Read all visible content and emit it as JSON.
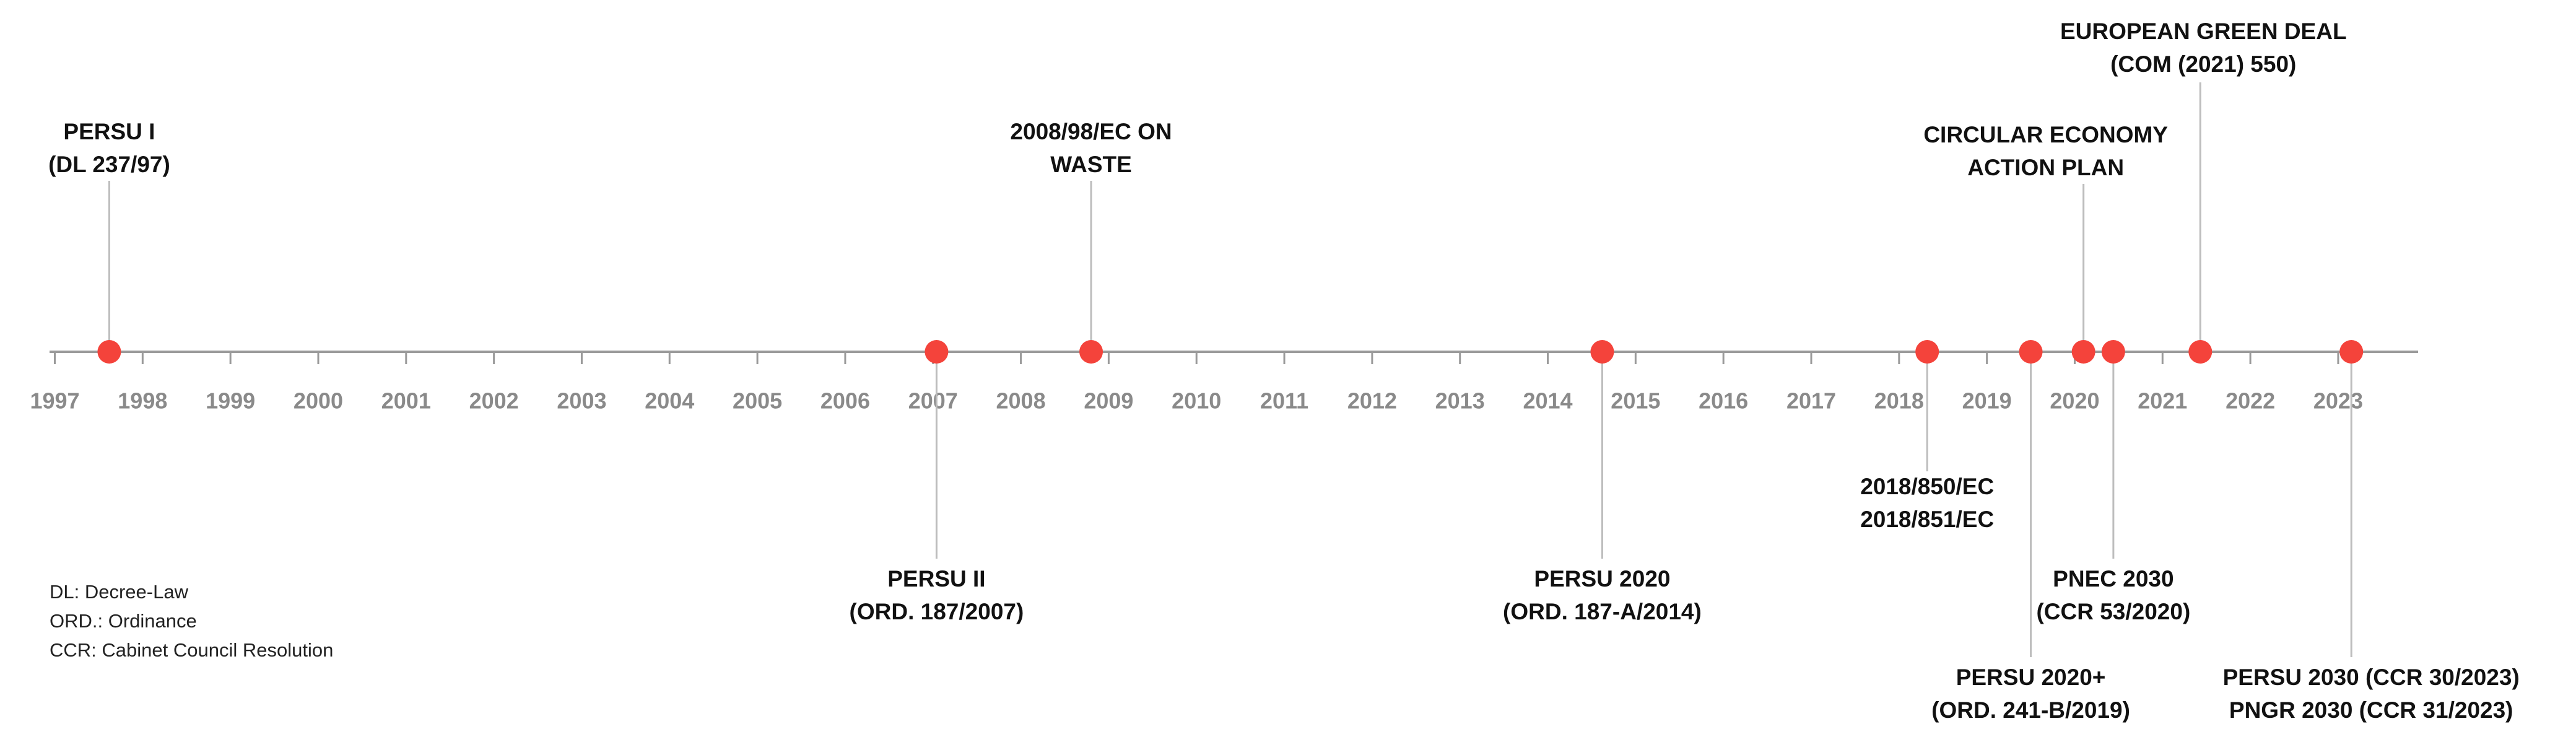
{
  "chart_data": {
    "type": "timeline",
    "xlim": [
      1996.94,
      2023.91
    ],
    "xticks": [
      1997,
      1998,
      1999,
      2000,
      2001,
      2002,
      2003,
      2004,
      2005,
      2006,
      2007,
      2008,
      2009,
      2010,
      2011,
      2012,
      2013,
      2014,
      2015,
      2016,
      2017,
      2018,
      2019,
      2020,
      2021,
      2022,
      2023
    ],
    "color": "#f4433b",
    "events": [
      {
        "x": 1997.62,
        "label": [
          "PERSU I",
          "(DL 237/97)"
        ]
      },
      {
        "x": 2007.04,
        "label": [
          "PERSU II",
          "(ORD. 187/2007)"
        ]
      },
      {
        "x": 2008.8,
        "label": [
          "2008/98/EC ON",
          "WASTE"
        ]
      },
      {
        "x": 2014.62,
        "label": [
          "PERSU 2020",
          "(ORD. 187-A/2014)"
        ]
      },
      {
        "x": 2018.32,
        "label": [
          "2018/850/EC",
          "2018/851/EC"
        ]
      },
      {
        "x": 2019.5,
        "label": [
          "PERSU 2020+",
          "(ORD. 241-B/2019)"
        ]
      },
      {
        "x": 2020.1,
        "label": [
          "CIRCULAR ECONOMY",
          "ACTION PLAN"
        ]
      },
      {
        "x": 2020.44,
        "label": [
          "PNEC 2030",
          "(CCR 53/2020)"
        ]
      },
      {
        "x": 2021.43,
        "label": [
          "EUROPEAN GREEN DEAL",
          "(COM (2021) 550)"
        ]
      },
      {
        "x": 2023.15,
        "label": [
          "PERSU 2030 (CCR 30/2023)",
          "PNGR 2030 (CCR 31/2023)"
        ]
      }
    ],
    "notes": [
      "DL: Decree-Law",
      "ORD.: Ordinance",
      "CCR: Cabinet Council Resolution"
    ]
  }
}
